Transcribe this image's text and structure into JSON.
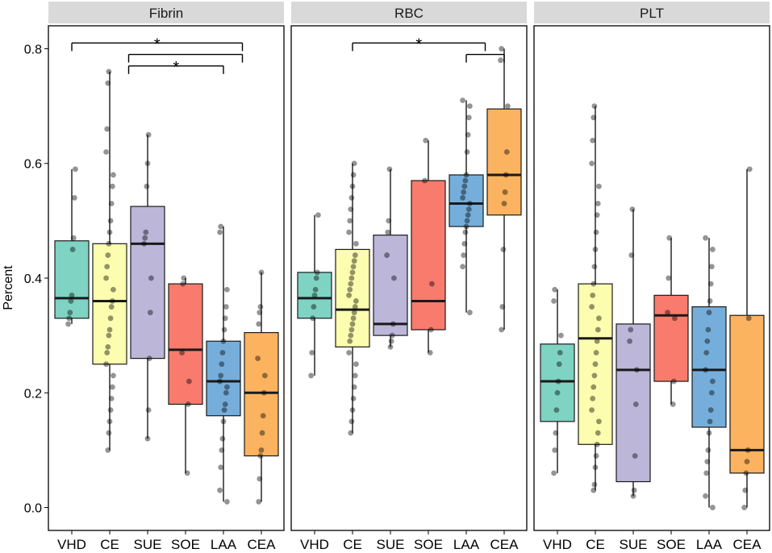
{
  "chart_data": {
    "type": "boxplot",
    "facet_layout": "three panels side by side with grey strip headers",
    "ylabel": "Percent",
    "ylim": [
      -0.04,
      0.84
    ],
    "yticks": [
      0.0,
      0.2,
      0.4,
      0.6,
      0.8
    ],
    "ytick_labels": [
      "0.0",
      "0.2",
      "0.4",
      "0.6",
      "0.8"
    ],
    "categories": [
      "VHD",
      "CE",
      "SUE",
      "SOE",
      "LAA",
      "CEA"
    ],
    "colors": {
      "VHD": "#7fd3c3",
      "CE": "#fdfdaf",
      "SUE": "#bcb6d9",
      "SOE": "#f97b6d",
      "LAA": "#76aedb",
      "CEA": "#fbb360",
      "strip": "#d9d9d9",
      "point": "#000000",
      "axis": "#000000"
    },
    "panels": [
      {
        "title": "Fibrin",
        "boxes": [
          {
            "group": "VHD",
            "min": 0.32,
            "q1": 0.33,
            "median": 0.365,
            "q3": 0.465,
            "max": 0.59,
            "points": [
              0.32,
              0.33,
              0.34,
              0.36,
              0.37,
              0.45,
              0.47,
              0.54,
              0.59
            ]
          },
          {
            "group": "CE",
            "min": 0.1,
            "q1": 0.25,
            "median": 0.36,
            "q3": 0.46,
            "max": 0.76,
            "points": [
              0.1,
              0.13,
              0.15,
              0.17,
              0.19,
              0.21,
              0.23,
              0.25,
              0.27,
              0.28,
              0.3,
              0.31,
              0.33,
              0.35,
              0.36,
              0.38,
              0.4,
              0.42,
              0.44,
              0.46,
              0.48,
              0.5,
              0.53,
              0.56,
              0.58,
              0.62,
              0.66,
              0.74,
              0.76
            ]
          },
          {
            "group": "SUE",
            "min": 0.12,
            "q1": 0.26,
            "median": 0.46,
            "q3": 0.525,
            "max": 0.65,
            "points": [
              0.12,
              0.17,
              0.26,
              0.34,
              0.4,
              0.46,
              0.47,
              0.48,
              0.56,
              0.6,
              0.65
            ]
          },
          {
            "group": "SOE",
            "min": 0.06,
            "q1": 0.18,
            "median": 0.275,
            "q3": 0.39,
            "max": 0.4,
            "points": [
              0.06,
              0.18,
              0.22,
              0.27,
              0.39,
              0.4
            ]
          },
          {
            "group": "LAA",
            "min": 0.01,
            "q1": 0.16,
            "median": 0.22,
            "q3": 0.29,
            "max": 0.49,
            "points": [
              0.01,
              0.03,
              0.07,
              0.1,
              0.12,
              0.15,
              0.17,
              0.18,
              0.2,
              0.21,
              0.22,
              0.23,
              0.25,
              0.27,
              0.29,
              0.31,
              0.33,
              0.35,
              0.38,
              0.48,
              0.49
            ]
          },
          {
            "group": "CEA",
            "min": 0.01,
            "q1": 0.09,
            "median": 0.2,
            "q3": 0.305,
            "max": 0.41,
            "points": [
              0.01,
              0.05,
              0.09,
              0.1,
              0.13,
              0.16,
              0.2,
              0.23,
              0.26,
              0.32,
              0.34,
              0.35,
              0.41
            ]
          }
        ],
        "annotations": [
          {
            "type": "bracket",
            "from": [
              "VHD"
            ],
            "to": [
              "LAA",
              "CEA"
            ],
            "level": 0.81,
            "label": "*"
          },
          {
            "type": "bracket",
            "from": [
              "CE",
              "SUE"
            ],
            "to": [
              "LAA",
              "CEA"
            ],
            "level": 0.79,
            "label": ""
          },
          {
            "type": "bracket",
            "from": [
              "CE",
              "SUE"
            ],
            "to": [
              "SOE",
              "LAA",
              "CEA"
            ],
            "level": 0.77,
            "label": "*"
          }
        ]
      },
      {
        "title": "RBC",
        "boxes": [
          {
            "group": "VHD",
            "min": 0.23,
            "q1": 0.33,
            "median": 0.365,
            "q3": 0.41,
            "max": 0.51,
            "points": [
              0.23,
              0.27,
              0.33,
              0.35,
              0.37,
              0.38,
              0.4,
              0.41,
              0.51
            ]
          },
          {
            "group": "CE",
            "min": 0.13,
            "q1": 0.28,
            "median": 0.345,
            "q3": 0.45,
            "max": 0.6,
            "points": [
              0.13,
              0.15,
              0.17,
              0.19,
              0.21,
              0.23,
              0.25,
              0.27,
              0.29,
              0.3,
              0.31,
              0.32,
              0.33,
              0.34,
              0.35,
              0.36,
              0.37,
              0.38,
              0.39,
              0.4,
              0.41,
              0.42,
              0.43,
              0.44,
              0.46,
              0.48,
              0.5,
              0.52,
              0.54,
              0.56,
              0.58,
              0.6
            ]
          },
          {
            "group": "SUE",
            "min": 0.28,
            "q1": 0.3,
            "median": 0.32,
            "q3": 0.475,
            "max": 0.59,
            "points": [
              0.28,
              0.29,
              0.3,
              0.32,
              0.4,
              0.44,
              0.48,
              0.5,
              0.59
            ]
          },
          {
            "group": "SOE",
            "min": 0.27,
            "q1": 0.31,
            "median": 0.36,
            "q3": 0.57,
            "max": 0.64,
            "points": [
              0.27,
              0.31,
              0.39,
              0.57,
              0.64
            ]
          },
          {
            "group": "LAA",
            "min": 0.34,
            "q1": 0.49,
            "median": 0.53,
            "q3": 0.58,
            "max": 0.71,
            "points": [
              0.34,
              0.42,
              0.44,
              0.46,
              0.48,
              0.49,
              0.5,
              0.51,
              0.52,
              0.53,
              0.54,
              0.55,
              0.56,
              0.57,
              0.58,
              0.62,
              0.65,
              0.68,
              0.7,
              0.71
            ]
          },
          {
            "group": "CEA",
            "min": 0.31,
            "q1": 0.51,
            "median": 0.58,
            "q3": 0.695,
            "max": 0.8,
            "points": [
              0.31,
              0.35,
              0.45,
              0.53,
              0.55,
              0.58,
              0.62,
              0.7,
              0.78,
              0.8
            ]
          }
        ],
        "annotations": [
          {
            "type": "bracket",
            "from": [
              "VHD",
              "CE",
              "SUE"
            ],
            "to": [
              "LAA",
              "CEA"
            ],
            "level": 0.81,
            "label": "*"
          },
          {
            "type": "bracket",
            "from": [
              "LAA"
            ],
            "to": [
              "CEA"
            ],
            "level": 0.79,
            "label": ""
          }
        ]
      },
      {
        "title": "PLT",
        "boxes": [
          {
            "group": "VHD",
            "min": 0.06,
            "q1": 0.15,
            "median": 0.22,
            "q3": 0.285,
            "max": 0.38,
            "points": [
              0.06,
              0.1,
              0.13,
              0.17,
              0.2,
              0.22,
              0.25,
              0.27,
              0.3,
              0.36,
              0.38
            ]
          },
          {
            "group": "CE",
            "min": 0.03,
            "q1": 0.11,
            "median": 0.295,
            "q3": 0.39,
            "max": 0.7,
            "points": [
              0.03,
              0.04,
              0.07,
              0.09,
              0.11,
              0.13,
              0.15,
              0.17,
              0.19,
              0.21,
              0.23,
              0.25,
              0.27,
              0.29,
              0.31,
              0.33,
              0.35,
              0.37,
              0.39,
              0.42,
              0.45,
              0.48,
              0.51,
              0.53,
              0.56,
              0.6,
              0.64,
              0.68,
              0.7
            ]
          },
          {
            "group": "SUE",
            "min": 0.02,
            "q1": 0.045,
            "median": 0.24,
            "q3": 0.32,
            "max": 0.52,
            "points": [
              0.02,
              0.03,
              0.09,
              0.18,
              0.24,
              0.29,
              0.31,
              0.44,
              0.52
            ]
          },
          {
            "group": "SOE",
            "min": 0.18,
            "q1": 0.22,
            "median": 0.335,
            "q3": 0.37,
            "max": 0.47,
            "points": [
              0.18,
              0.22,
              0.33,
              0.34,
              0.4,
              0.47
            ]
          },
          {
            "group": "LAA",
            "min": 0.0,
            "q1": 0.14,
            "median": 0.24,
            "q3": 0.35,
            "max": 0.47,
            "points": [
              0.0,
              0.02,
              0.06,
              0.08,
              0.1,
              0.13,
              0.15,
              0.17,
              0.2,
              0.22,
              0.24,
              0.27,
              0.29,
              0.31,
              0.34,
              0.36,
              0.39,
              0.42,
              0.45,
              0.47
            ]
          },
          {
            "group": "CEA",
            "min": 0.0,
            "q1": 0.06,
            "median": 0.1,
            "q3": 0.335,
            "max": 0.59,
            "points": [
              0.0,
              0.03,
              0.06,
              0.08,
              0.1,
              0.33,
              0.59
            ]
          }
        ],
        "annotations": []
      }
    ]
  }
}
